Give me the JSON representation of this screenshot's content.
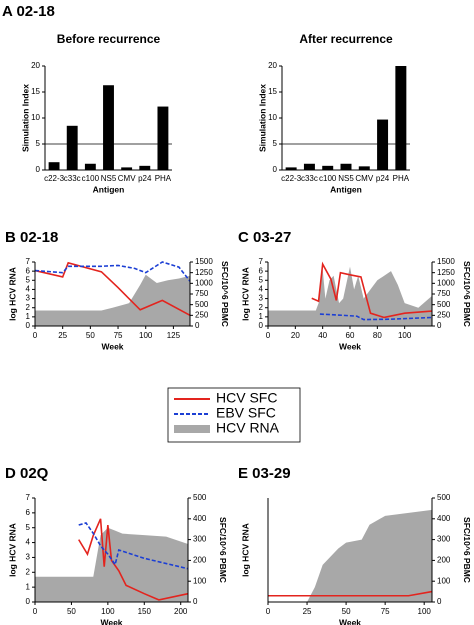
{
  "chart_data": [
    {
      "type": "bar",
      "panel_label": "A 02-18",
      "title": "Before recurrence",
      "x_label": "Antigen",
      "y_label": "Simulation Index",
      "categories": [
        "c22-3",
        "c33c",
        "c100",
        "NS5",
        "CMV",
        "p24",
        "PHA"
      ],
      "values": [
        1.5,
        8.5,
        1.2,
        16.3,
        0.5,
        0.8,
        12.2
      ],
      "color": "#000000",
      "ylim": [
        0,
        20
      ],
      "yticks": [
        0,
        5,
        10,
        15,
        20
      ],
      "hline": 5
    },
    {
      "type": "bar",
      "title": "After recurrence",
      "x_label": "Antigen",
      "y_label": "Simulation Index",
      "categories": [
        "c22-3",
        "c33c",
        "c100",
        "NS5",
        "CMV",
        "p24",
        "PHA"
      ],
      "values": [
        0.5,
        1.2,
        0.8,
        1.2,
        0.7,
        9.7,
        20
      ],
      "color": "#000000",
      "ylim": [
        0,
        20
      ],
      "yticks": [
        0,
        5,
        10,
        15,
        20
      ],
      "hline": 5
    },
    {
      "type": "line",
      "title": "B 02-18",
      "x_label": "Week",
      "y_label": "log HCV RNA",
      "y2_label": "SFC/10^6 PBMC",
      "xlim": [
        0,
        140
      ],
      "xticks": [
        0,
        25,
        50,
        75,
        100,
        125
      ],
      "ylim": [
        0,
        7
      ],
      "yticks": [
        0,
        1,
        2,
        3,
        4,
        5,
        6,
        7
      ],
      "y2lim": [
        0,
        1500
      ],
      "y2ticks": [
        0,
        250,
        500,
        750,
        1000,
        1250,
        1500
      ],
      "series": [
        {
          "name": "HCV SFC",
          "color": "#e3241e",
          "style": "solid",
          "axis": "y2",
          "x": [
            0,
            25,
            30,
            60,
            75,
            95,
            115,
            140
          ],
          "values": [
            1300,
            1150,
            1480,
            1270,
            900,
            380,
            600,
            250
          ]
        },
        {
          "name": "EBV SFC",
          "color": "#1c3fd4",
          "style": "dashed",
          "axis": "y2",
          "x": [
            0,
            25,
            30,
            60,
            75,
            90,
            100,
            115,
            130,
            140
          ],
          "values": [
            1300,
            1250,
            1400,
            1400,
            1420,
            1350,
            1250,
            1500,
            1380,
            1050
          ]
        },
        {
          "name": "HCV RNA",
          "color": "#a8a8a8",
          "style": "area",
          "axis": "y",
          "x": [
            0,
            60,
            70,
            85,
            95,
            100,
            110,
            120,
            130,
            140
          ],
          "values": [
            1.7,
            1.7,
            2.0,
            2.5,
            4.5,
            5.6,
            4.7,
            5.0,
            5.2,
            5.5
          ]
        }
      ]
    },
    {
      "type": "line",
      "title": "C 03-27",
      "x_label": "Week",
      "y_label": "log HCV RNA",
      "y2_label": "SFC/10^6 PBMC",
      "xlim": [
        0,
        120
      ],
      "xticks": [
        0,
        20,
        40,
        60,
        80,
        100
      ],
      "ylim": [
        0,
        7
      ],
      "yticks": [
        0,
        1,
        2,
        3,
        4,
        5,
        6,
        7
      ],
      "y2lim": [
        0,
        1500
      ],
      "y2ticks": [
        0,
        250,
        500,
        750,
        1000,
        1250,
        1500
      ],
      "series": [
        {
          "name": "HCV SFC",
          "color": "#e3241e",
          "style": "solid",
          "axis": "y2",
          "x": [
            32,
            37,
            40,
            46,
            50,
            53,
            60,
            68,
            75,
            85,
            100,
            120
          ],
          "values": [
            650,
            580,
            1450,
            1100,
            600,
            1250,
            1200,
            1150,
            300,
            200,
            300,
            350
          ]
        },
        {
          "name": "EBV SFC",
          "color": "#1c3fd4",
          "style": "dashed",
          "axis": "y2",
          "x": [
            38,
            55,
            65,
            70,
            90,
            120
          ],
          "values": [
            280,
            250,
            230,
            150,
            160,
            200
          ]
        },
        {
          "name": "HCV RNA",
          "color": "#a8a8a8",
          "style": "area",
          "axis": "y",
          "x": [
            0,
            35,
            37,
            40,
            42,
            45,
            48,
            52,
            55,
            60,
            63,
            66,
            70,
            75,
            80,
            90,
            95,
            100,
            110,
            120
          ],
          "values": [
            1.7,
            1.7,
            2.5,
            6.2,
            3.0,
            5.0,
            5.5,
            2.5,
            3.0,
            6.5,
            4.0,
            5.5,
            3.0,
            4.0,
            5.0,
            6.0,
            4.5,
            2.5,
            2.0,
            3.3
          ]
        }
      ]
    },
    {
      "type": "line",
      "title": "D 02Q",
      "x_label": "Week",
      "y_label": "log HCV RNA",
      "y2_label": "SFC/10^6 PBMC",
      "xlim": [
        0,
        210
      ],
      "xticks": [
        0,
        50,
        100,
        150,
        200
      ],
      "ylim": [
        0,
        7
      ],
      "yticks": [
        0,
        1,
        2,
        3,
        4,
        5,
        6,
        7
      ],
      "y2lim": [
        0,
        500
      ],
      "y2ticks": [
        0,
        100,
        200,
        300,
        400,
        500
      ],
      "series": [
        {
          "name": "HCV SFC",
          "color": "#e3241e",
          "style": "solid",
          "axis": "y2",
          "x": [
            60,
            72,
            80,
            90,
            95,
            100,
            105,
            115,
            125,
            150,
            170,
            210
          ],
          "values": [
            300,
            230,
            320,
            400,
            170,
            370,
            200,
            150,
            80,
            40,
            10,
            40
          ]
        },
        {
          "name": "EBV SFC",
          "color": "#1c3fd4",
          "style": "dashed",
          "axis": "y2",
          "x": [
            60,
            70,
            80,
            90,
            100,
            110,
            115,
            150,
            210
          ],
          "values": [
            370,
            380,
            330,
            270,
            230,
            180,
            250,
            210,
            160
          ]
        },
        {
          "name": "HCV RNA",
          "color": "#a8a8a8",
          "style": "area",
          "axis": "y",
          "x": [
            0,
            80,
            90,
            100,
            110,
            120,
            150,
            180,
            210
          ],
          "values": [
            1.7,
            1.7,
            4.5,
            5.0,
            4.8,
            4.6,
            4.5,
            4.4,
            3.9
          ]
        }
      ]
    },
    {
      "type": "line",
      "title": "E 03-29",
      "x_label": "Week",
      "y_label": "log HCV RNA",
      "y2_label": "SFC/10^6 PBMC",
      "xlim": [
        0,
        105
      ],
      "xticks": [
        0,
        25,
        50,
        75,
        100
      ],
      "ylim": [
        0,
        7
      ],
      "y2lim": [
        0,
        500
      ],
      "y2ticks": [
        0,
        100,
        200,
        300,
        400,
        500
      ],
      "series": [
        {
          "name": "HCV SFC",
          "color": "#e3241e",
          "style": "solid",
          "axis": "y2",
          "x": [
            0,
            90,
            105
          ],
          "values": [
            30,
            30,
            50
          ]
        },
        {
          "name": "HCV RNA",
          "color": "#a8a8a8",
          "style": "area",
          "axis": "y",
          "x": [
            0,
            25,
            30,
            35,
            45,
            50,
            60,
            65,
            75,
            105
          ],
          "values": [
            0,
            0,
            1.0,
            2.5,
            3.6,
            4.0,
            4.2,
            5.2,
            5.8,
            6.2
          ]
        }
      ]
    }
  ]
}
